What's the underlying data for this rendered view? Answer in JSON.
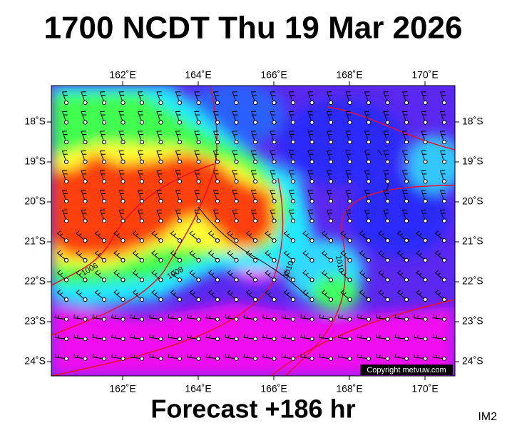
{
  "title": "1700 NCDT Thu 19 Mar 2026",
  "longitude_labels": [
    "162˚E",
    "164˚E",
    "166˚E",
    "168˚E",
    "170˚E"
  ],
  "latitude_labels": [
    "18˚S",
    "19˚S",
    "20˚S",
    "21˚S",
    "22˚S",
    "23˚S",
    "24˚S"
  ],
  "isobar_labels": [
    "1006",
    "1008",
    "1010",
    "1010"
  ],
  "copyright": "Copyright metvuw.com",
  "footer": "Forecast +186 hr",
  "image_id": "IM2"
}
